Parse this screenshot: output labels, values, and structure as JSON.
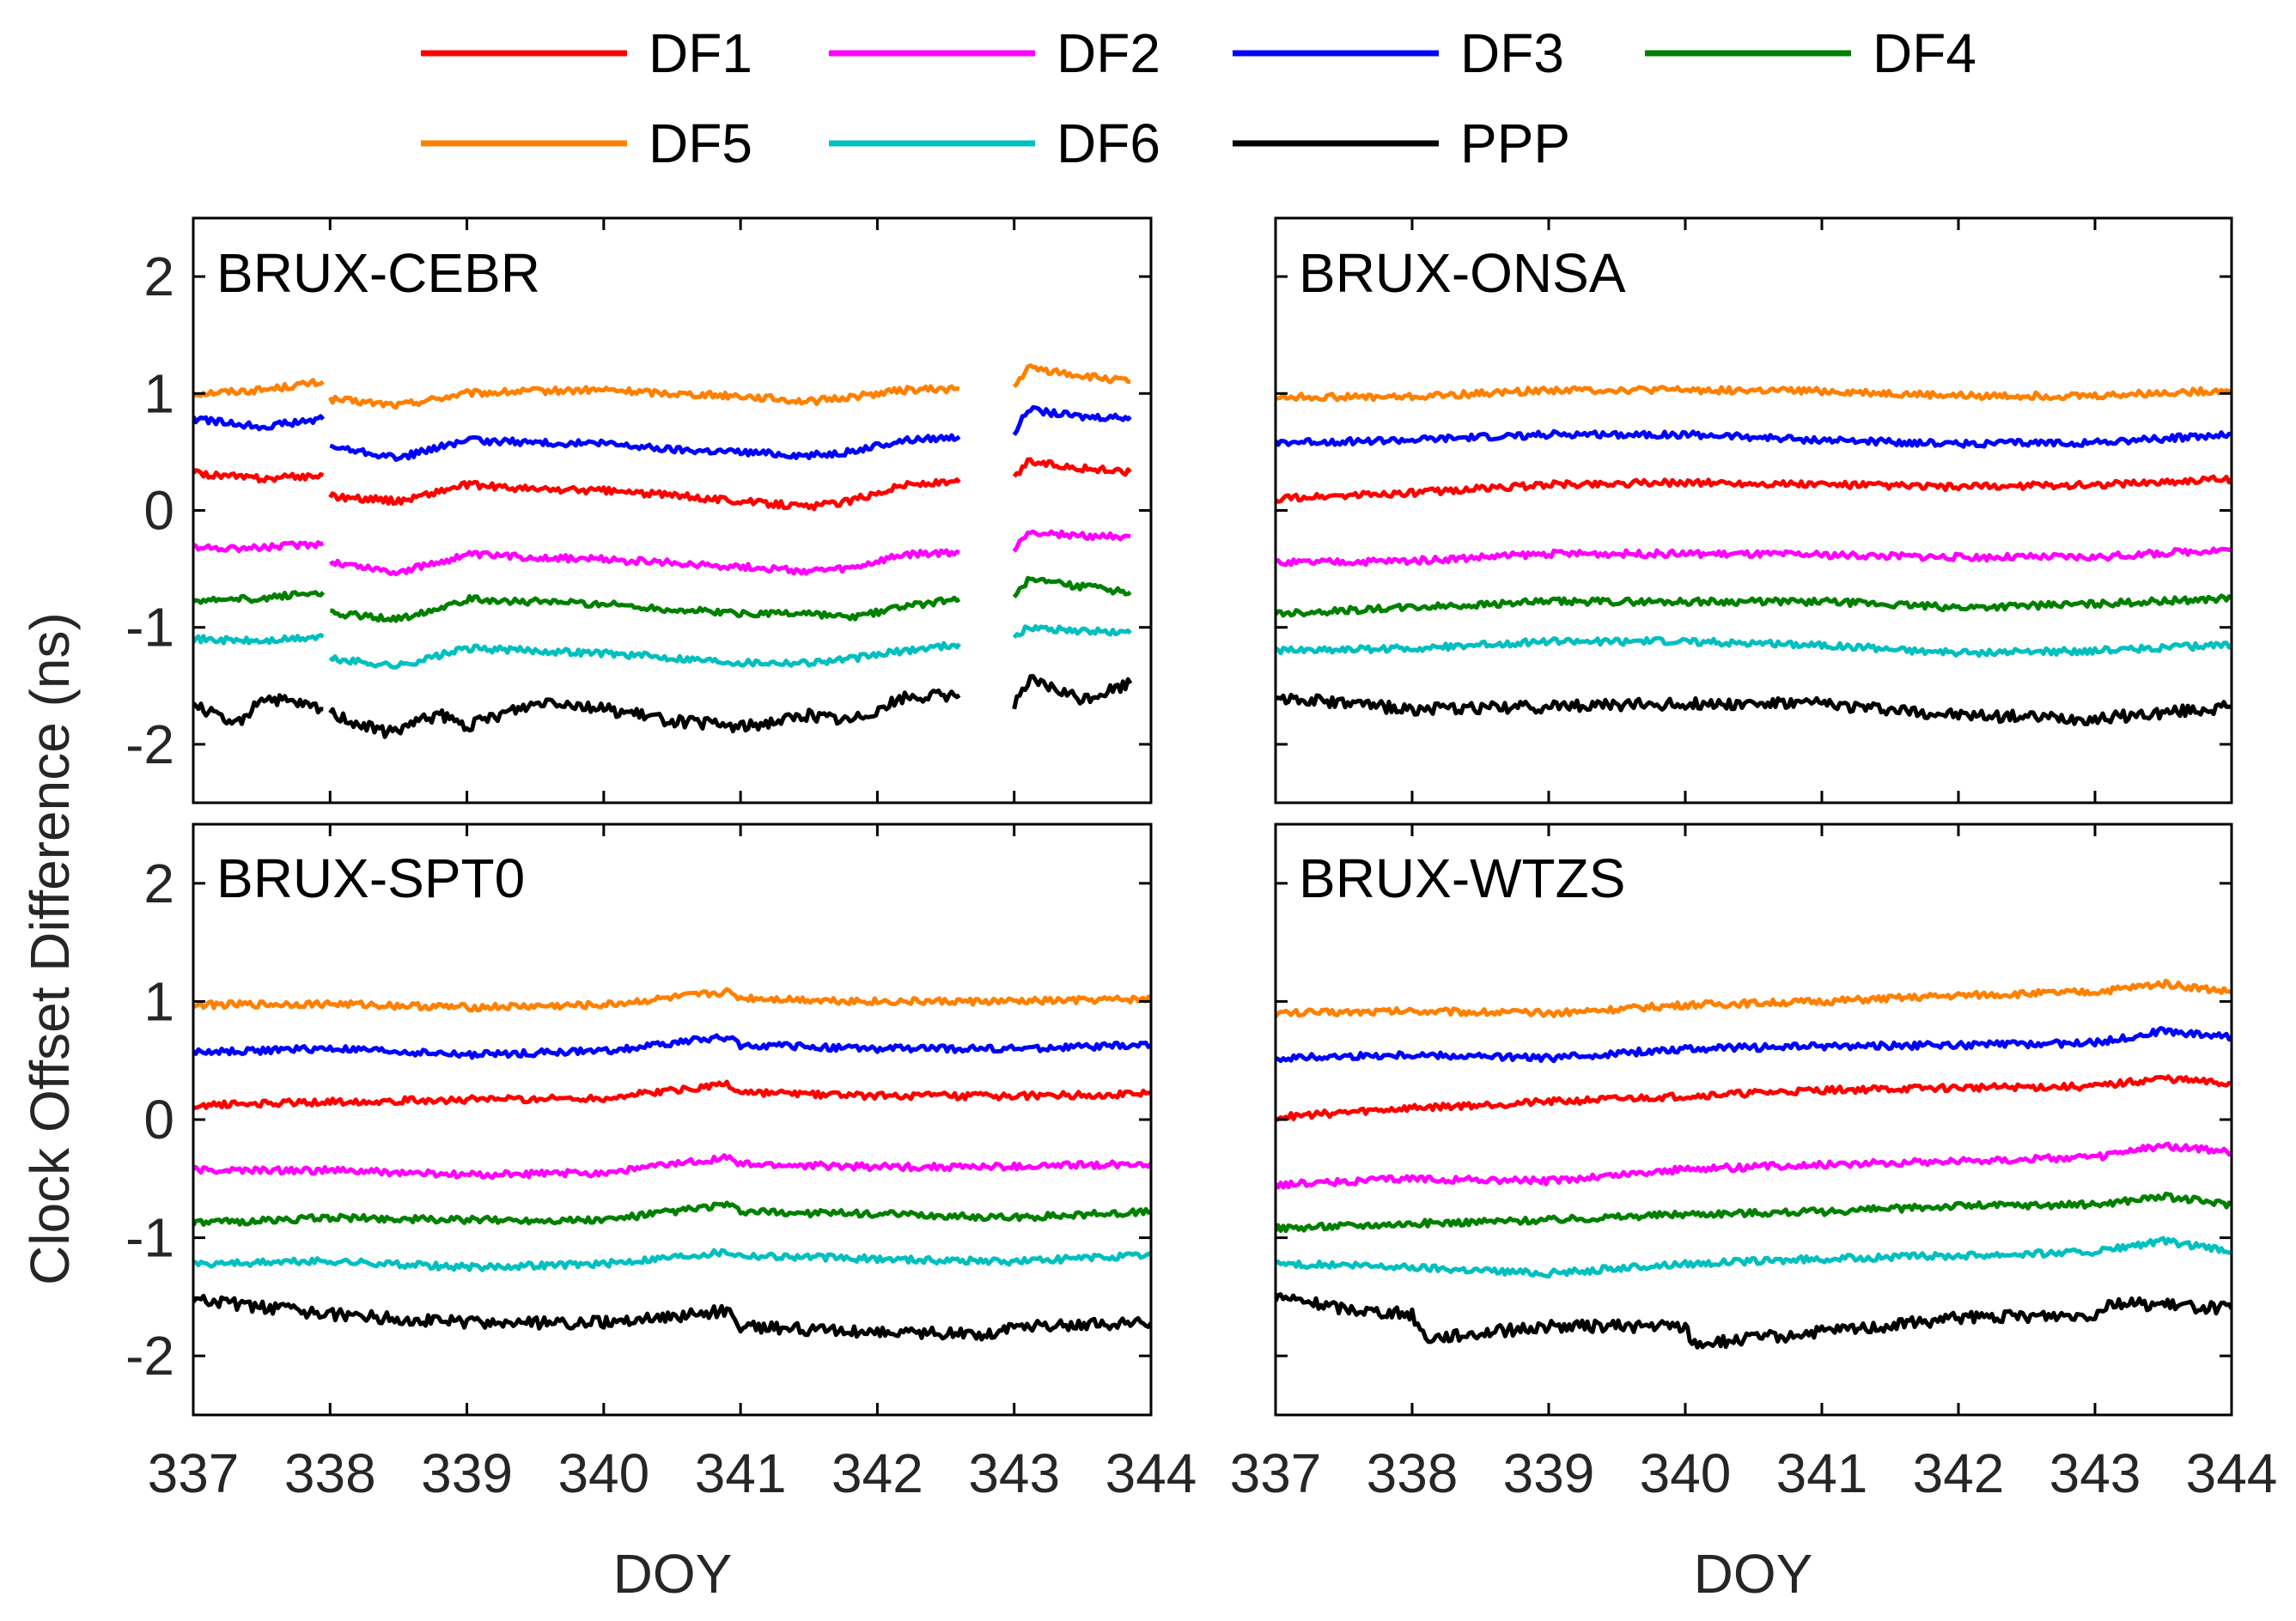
{
  "chart_data": {
    "type": "line",
    "ylabel": "Clock Offset Difference (ns)",
    "xlabel": "DOY",
    "xlim": [
      337,
      344
    ],
    "ylim": [
      -2.5,
      2.5
    ],
    "xticks": [
      "337",
      "338",
      "339",
      "340",
      "341",
      "342",
      "343",
      "344"
    ],
    "yticks": [
      "2",
      "1",
      "0",
      "-1",
      "-2"
    ],
    "series_names": [
      "DF1",
      "DF2",
      "DF3",
      "DF4",
      "DF5",
      "DF6",
      "PPP"
    ],
    "colors": {
      "DF1": "#ff0000",
      "DF2": "#ff00ff",
      "DF3": "#0000ff",
      "DF4": "#008000",
      "DF5": "#ff8000",
      "DF6": "#00bfbf",
      "PPP": "#000000"
    },
    "panels": [
      {
        "title": "BRUX-CEBR",
        "gaps": [
          338.0,
          343.0
        ],
        "series": [
          {
            "name": "DF5",
            "days": [
              337,
              337.5,
              337.95,
              338.0,
              338.5,
              339.0,
              339.5,
              340,
              340.5,
              341,
              341.5,
              341.8,
              342.2,
              342.6,
              343.0,
              343.1,
              343.5,
              343.85
            ],
            "values": [
              1.0,
              1.03,
              1.1,
              0.95,
              0.9,
              1.0,
              1.02,
              1.03,
              1.0,
              0.98,
              0.93,
              0.97,
              1.03,
              1.04,
              1.05,
              1.22,
              1.15,
              1.1
            ]
          },
          {
            "name": "DF3",
            "days": [
              337,
              337.5,
              337.95,
              338.0,
              338.5,
              339.0,
              339.5,
              340,
              340.5,
              341,
              341.5,
              341.8,
              342.2,
              342.6,
              343.0,
              343.1,
              343.5,
              343.85
            ],
            "values": [
              0.78,
              0.72,
              0.78,
              0.55,
              0.45,
              0.6,
              0.58,
              0.57,
              0.52,
              0.5,
              0.47,
              0.5,
              0.6,
              0.63,
              0.66,
              0.86,
              0.8,
              0.8
            ]
          },
          {
            "name": "DF1",
            "days": [
              337,
              337.5,
              337.95,
              338.0,
              338.5,
              339.0,
              339.5,
              340,
              340.5,
              341,
              341.5,
              341.8,
              342.2,
              342.6,
              343.0,
              343.1,
              343.5,
              343.85
            ],
            "values": [
              0.32,
              0.27,
              0.3,
              0.12,
              0.08,
              0.22,
              0.18,
              0.17,
              0.13,
              0.08,
              0.03,
              0.08,
              0.22,
              0.24,
              0.27,
              0.42,
              0.36,
              0.33
            ]
          },
          {
            "name": "DF2",
            "days": [
              337,
              337.5,
              337.95,
              338.0,
              338.5,
              339.0,
              339.5,
              340,
              340.5,
              341,
              341.5,
              341.8,
              342.2,
              342.6,
              343.0,
              343.1,
              343.5,
              343.85
            ],
            "values": [
              -0.32,
              -0.32,
              -0.28,
              -0.44,
              -0.53,
              -0.38,
              -0.4,
              -0.42,
              -0.45,
              -0.48,
              -0.52,
              -0.5,
              -0.38,
              -0.36,
              -0.35,
              -0.18,
              -0.22,
              -0.22
            ]
          },
          {
            "name": "DF4",
            "days": [
              337,
              337.5,
              337.95,
              338.0,
              338.5,
              339.0,
              339.5,
              340,
              340.5,
              341,
              341.5,
              341.8,
              342.2,
              342.6,
              343.0,
              343.1,
              343.5,
              343.85
            ],
            "values": [
              -0.78,
              -0.75,
              -0.7,
              -0.88,
              -0.93,
              -0.76,
              -0.78,
              -0.8,
              -0.85,
              -0.88,
              -0.88,
              -0.92,
              -0.82,
              -0.76,
              -0.72,
              -0.6,
              -0.65,
              -0.7
            ]
          },
          {
            "name": "DF6",
            "days": [
              337,
              337.5,
              337.95,
              338.0,
              338.5,
              339.0,
              339.5,
              340,
              340.5,
              341,
              341.5,
              341.8,
              342.2,
              342.6,
              343.0,
              343.1,
              343.5,
              343.85
            ],
            "values": [
              -1.1,
              -1.12,
              -1.08,
              -1.27,
              -1.33,
              -1.18,
              -1.2,
              -1.22,
              -1.26,
              -1.3,
              -1.3,
              -1.27,
              -1.2,
              -1.14,
              -1.1,
              -1.0,
              -1.03,
              -1.05
            ]
          },
          {
            "name": "PPP",
            "days": [
              337,
              337.3,
              337.5,
              337.95,
              338.0,
              338.4,
              338.8,
              339.0,
              339.3,
              339.6,
              340,
              340.5,
              341,
              341.5,
              341.8,
              342.2,
              342.6,
              343.0,
              343.1,
              343.5,
              343.85
            ],
            "values": [
              -1.65,
              -1.85,
              -1.6,
              -1.7,
              -1.73,
              -1.9,
              -1.75,
              -1.85,
              -1.72,
              -1.62,
              -1.7,
              -1.8,
              -1.85,
              -1.75,
              -1.8,
              -1.6,
              -1.58,
              -1.65,
              -1.45,
              -1.62,
              -1.48
            ]
          }
        ]
      },
      {
        "title": "BRUX-ONSA",
        "gaps": [],
        "series": [
          {
            "name": "DF5",
            "days": [
              337,
              338,
              339,
              340,
              341,
              342,
              343,
              344
            ],
            "values": [
              0.97,
              0.97,
              1.03,
              1.03,
              1.02,
              0.98,
              0.98,
              1.03
            ]
          },
          {
            "name": "DF3",
            "days": [
              337,
              338,
              339,
              340,
              341,
              342,
              343,
              344
            ],
            "values": [
              0.58,
              0.6,
              0.65,
              0.65,
              0.6,
              0.57,
              0.58,
              0.65
            ]
          },
          {
            "name": "DF1",
            "days": [
              337,
              338,
              339,
              340,
              341,
              342,
              343,
              344
            ],
            "values": [
              0.1,
              0.15,
              0.22,
              0.24,
              0.22,
              0.2,
              0.22,
              0.27
            ]
          },
          {
            "name": "DF2",
            "days": [
              337,
              338,
              339,
              340,
              341,
              342,
              343,
              344
            ],
            "values": [
              -0.45,
              -0.43,
              -0.37,
              -0.37,
              -0.38,
              -0.4,
              -0.4,
              -0.33
            ]
          },
          {
            "name": "DF4",
            "days": [
              337,
              338,
              339,
              340,
              341,
              342,
              343,
              344
            ],
            "values": [
              -0.88,
              -0.83,
              -0.78,
              -0.78,
              -0.78,
              -0.83,
              -0.8,
              -0.75
            ]
          },
          {
            "name": "DF6",
            "days": [
              337,
              338,
              339,
              340,
              341,
              342,
              343,
              344
            ],
            "values": [
              -1.2,
              -1.18,
              -1.12,
              -1.12,
              -1.15,
              -1.22,
              -1.2,
              -1.15
            ]
          },
          {
            "name": "PPP",
            "days": [
              337,
              338,
              339,
              340,
              341,
              342,
              343,
              344
            ],
            "values": [
              -1.6,
              -1.7,
              -1.68,
              -1.65,
              -1.65,
              -1.75,
              -1.78,
              -1.68
            ]
          }
        ]
      },
      {
        "title": "BRUX-SPT0",
        "gaps": [],
        "series": [
          {
            "name": "DF5",
            "days": [
              337,
              338,
              339,
              340,
              340.9,
              341,
              342,
              343,
              344
            ],
            "values": [
              0.97,
              0.98,
              0.95,
              0.97,
              1.08,
              1.03,
              1.0,
              1.0,
              1.02
            ]
          },
          {
            "name": "DF3",
            "days": [
              337,
              338,
              339,
              340,
              340.9,
              341,
              342,
              343,
              344
            ],
            "values": [
              0.57,
              0.6,
              0.55,
              0.58,
              0.7,
              0.63,
              0.6,
              0.6,
              0.63
            ]
          },
          {
            "name": "DF1",
            "days": [
              337,
              338,
              339,
              340,
              340.9,
              341,
              342,
              343,
              344
            ],
            "values": [
              0.12,
              0.15,
              0.17,
              0.18,
              0.3,
              0.23,
              0.2,
              0.2,
              0.22
            ]
          },
          {
            "name": "DF2",
            "days": [
              337,
              338,
              339,
              340,
              340.9,
              341,
              342,
              343,
              344
            ],
            "values": [
              -0.43,
              -0.43,
              -0.47,
              -0.45,
              -0.32,
              -0.38,
              -0.4,
              -0.4,
              -0.37
            ]
          },
          {
            "name": "DF4",
            "days": [
              337,
              338,
              339,
              340,
              340.9,
              341,
              342,
              343,
              344
            ],
            "values": [
              -0.88,
              -0.83,
              -0.85,
              -0.85,
              -0.72,
              -0.78,
              -0.8,
              -0.83,
              -0.78
            ]
          },
          {
            "name": "DF6",
            "days": [
              337,
              338,
              339,
              340,
              340.9,
              341,
              342,
              343,
              344
            ],
            "values": [
              -1.22,
              -1.2,
              -1.25,
              -1.22,
              -1.12,
              -1.15,
              -1.18,
              -1.2,
              -1.15
            ]
          },
          {
            "name": "PPP",
            "days": [
              337,
              337.6,
              338,
              339,
              340,
              340.9,
              341,
              342,
              342.8,
              343,
              344
            ],
            "values": [
              -1.52,
              -1.6,
              -1.65,
              -1.72,
              -1.72,
              -1.62,
              -1.75,
              -1.8,
              -1.82,
              -1.75,
              -1.72
            ]
          }
        ]
      },
      {
        "title": "BRUX-WTZS",
        "gaps": [],
        "series": [
          {
            "name": "DF5",
            "days": [
              337,
              338,
              339,
              340,
              341,
              342,
              343,
              343.5,
              344
            ],
            "values": [
              0.9,
              0.92,
              0.9,
              0.97,
              1.0,
              1.05,
              1.08,
              1.15,
              1.08
            ]
          },
          {
            "name": "DF3",
            "days": [
              337,
              338,
              339,
              340,
              341,
              342,
              343,
              343.5,
              344
            ],
            "values": [
              0.52,
              0.55,
              0.52,
              0.6,
              0.62,
              0.63,
              0.65,
              0.75,
              0.7
            ]
          },
          {
            "name": "DF1",
            "days": [
              337,
              338,
              339,
              340,
              341,
              342,
              343,
              343.5,
              344
            ],
            "values": [
              0.02,
              0.1,
              0.15,
              0.2,
              0.25,
              0.27,
              0.28,
              0.35,
              0.3
            ]
          },
          {
            "name": "DF2",
            "days": [
              337,
              338,
              339,
              340,
              341,
              342,
              343,
              343.5,
              344
            ],
            "values": [
              -0.55,
              -0.5,
              -0.52,
              -0.42,
              -0.38,
              -0.35,
              -0.32,
              -0.22,
              -0.28
            ]
          },
          {
            "name": "DF4",
            "days": [
              337,
              338,
              339,
              340,
              341,
              342,
              343,
              343.5,
              344
            ],
            "values": [
              -0.92,
              -0.88,
              -0.85,
              -0.8,
              -0.78,
              -0.73,
              -0.72,
              -0.65,
              -0.72
            ]
          },
          {
            "name": "DF6",
            "days": [
              337,
              338,
              339,
              340,
              341,
              342,
              343,
              343.5,
              344
            ],
            "values": [
              -1.22,
              -1.25,
              -1.3,
              -1.22,
              -1.18,
              -1.15,
              -1.12,
              -1.03,
              -1.12
            ]
          },
          {
            "name": "PPP",
            "days": [
              337,
              337.5,
              338,
              338.1,
              339,
              340,
              340.05,
              341,
              342,
              343,
              343.1,
              344
            ],
            "values": [
              -1.5,
              -1.6,
              -1.65,
              -1.85,
              -1.75,
              -1.75,
              -1.9,
              -1.8,
              -1.68,
              -1.65,
              -1.55,
              -1.6
            ]
          }
        ]
      }
    ]
  }
}
